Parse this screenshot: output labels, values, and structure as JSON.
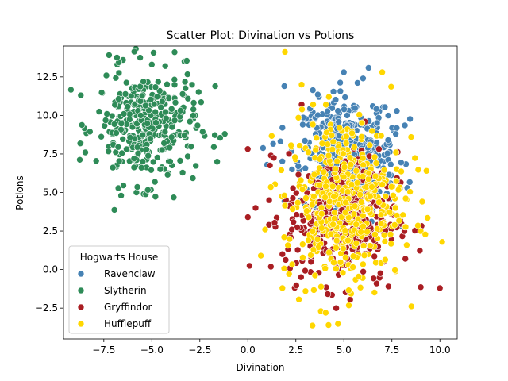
{
  "chart_data": {
    "type": "scatter",
    "title": "Scatter Plot: Divination vs Potions",
    "xlabel": "Divination",
    "ylabel": "Potions",
    "xlim": [
      -9.6,
      10.9
    ],
    "ylim": [
      -4.5,
      14.5
    ],
    "xticks": [
      -7.5,
      -5.0,
      -2.5,
      0.0,
      2.5,
      5.0,
      7.5,
      10.0
    ],
    "xtick_labels": [
      "−7.5",
      "−5.0",
      "−2.5",
      "0.0",
      "2.5",
      "5.0",
      "7.5",
      "10.0"
    ],
    "yticks": [
      -2.5,
      0.0,
      2.5,
      5.0,
      7.5,
      10.0,
      12.5
    ],
    "ytick_labels": [
      "−2.5",
      "0.0",
      "2.5",
      "5.0",
      "7.5",
      "10.0",
      "12.5"
    ],
    "grid": false,
    "legend": {
      "title": "Hogwarts House",
      "placement": "bottom-left"
    },
    "series": [
      {
        "name": "Ravenclaw",
        "color": "#4682b4",
        "cluster": {
          "cx": 5.3,
          "cy": 7.6,
          "sx": 1.2,
          "sy": 1.8
        },
        "n": 420,
        "points": [
          [
            1.9,
            11.9
          ],
          [
            1.8,
            9.2
          ],
          [
            1.0,
            6.8
          ],
          [
            2.3,
            6.5
          ],
          [
            7.6,
            9.0
          ],
          [
            8.3,
            5.3
          ],
          [
            7.9,
            2.8
          ],
          [
            5.3,
            0.6
          ],
          [
            6.5,
            3.8
          ],
          [
            5.0,
            12.8
          ],
          [
            6.0,
            12.4
          ],
          [
            3.7,
            11.2
          ]
        ]
      },
      {
        "name": "Slytherin",
        "color": "#2e8b57",
        "cluster": {
          "cx": -5.3,
          "cy": 9.3,
          "sx": 1.3,
          "sy": 1.85
        },
        "n": 330,
        "points": [
          [
            -8.7,
            11.3
          ],
          [
            -8.7,
            8.2
          ],
          [
            -6.6,
            4.8
          ],
          [
            -5.8,
            5.0
          ],
          [
            -1.2,
            8.8
          ],
          [
            -1.6,
            7.0
          ],
          [
            -3.3,
            13.5
          ],
          [
            -6.5,
            13.6
          ],
          [
            -6.8,
            13.3
          ],
          [
            -5.0,
            13.3
          ],
          [
            -4.3,
            13.2
          ],
          [
            -1.7,
            11.9
          ]
        ]
      },
      {
        "name": "Gryffindor",
        "color": "#a91d22",
        "cluster": {
          "cx": 4.9,
          "cy": 3.4,
          "sx": 1.45,
          "sy": 2.1
        },
        "n": 360,
        "points": [
          [
            0.0,
            3.4
          ],
          [
            0.4,
            4.0
          ],
          [
            1.2,
            7.4
          ],
          [
            10.0,
            -1.2
          ],
          [
            8.2,
            0.7
          ],
          [
            6.7,
            -0.9
          ],
          [
            4.6,
            -2.5
          ],
          [
            2.8,
            12.0
          ],
          [
            2.8,
            10.7
          ],
          [
            6.1,
            9.6
          ],
          [
            1.8,
            1.0
          ],
          [
            1.1,
            2.9
          ]
        ]
      },
      {
        "name": "Hufflepuff",
        "color": "#ffd700",
        "cluster": {
          "cx": 5.0,
          "cy": 4.5,
          "sx": 1.55,
          "sy": 2.7
        },
        "n": 420,
        "points": [
          [
            1.8,
            -1.2
          ],
          [
            3.0,
            -1.4
          ],
          [
            3.8,
            -2.7
          ],
          [
            4.2,
            -3.6
          ],
          [
            7.0,
            12.8
          ],
          [
            2.8,
            12.0
          ],
          [
            9.3,
            6.4
          ],
          [
            9.0,
            2.5
          ],
          [
            8.5,
            8.6
          ],
          [
            0.9,
            2.6
          ],
          [
            3.4,
            10.7
          ],
          [
            4.0,
            0.2
          ]
        ]
      }
    ]
  }
}
